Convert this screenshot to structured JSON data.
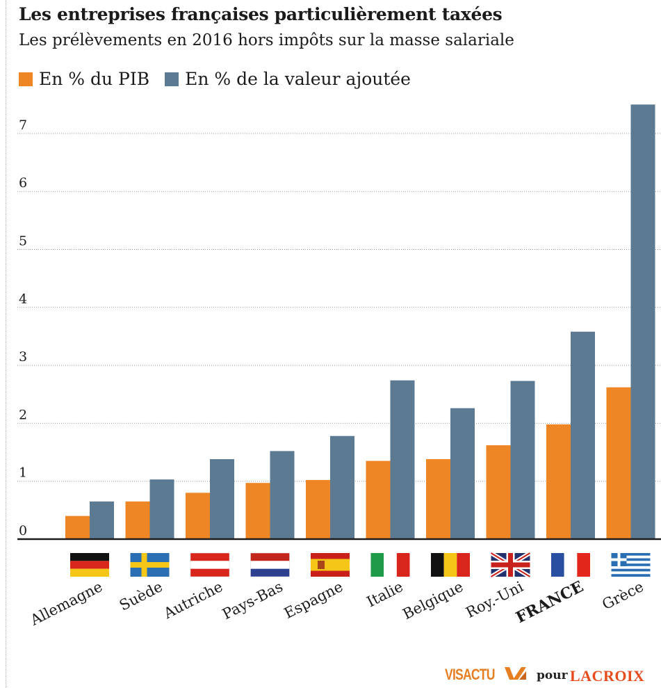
{
  "header": {
    "title": "Les entreprises françaises particulièrement taxées",
    "subtitle": "Les prélèvements en 2016 hors impôts sur la masse salariale"
  },
  "legend": [
    {
      "label": "En % du PIB",
      "color": "#ef8626"
    },
    {
      "label": "En % de la valeur ajoutée",
      "color": "#5d7a93"
    }
  ],
  "chart_data": {
    "type": "bar",
    "categories": [
      "Allemagne",
      "Suède",
      "Autriche",
      "Pays-Bas",
      "Espagne",
      "Italie",
      "Belgique",
      "Roy.-Uni",
      "FRANCE",
      "Grèce"
    ],
    "series": [
      {
        "name": "En % du PIB",
        "color": "#ef8626",
        "values": [
          0.4,
          0.65,
          0.8,
          0.97,
          1.02,
          1.35,
          1.38,
          1.62,
          1.98,
          2.62
        ]
      },
      {
        "name": "En % de la valeur ajoutée",
        "color": "#5d7a93",
        "values": [
          0.65,
          1.03,
          1.38,
          1.52,
          1.78,
          2.74,
          2.26,
          2.73,
          3.58,
          7.5
        ]
      }
    ],
    "yticks": [
      0,
      1,
      2,
      3,
      4,
      5,
      6,
      7
    ],
    "ylim": [
      0,
      7.5
    ],
    "grid": true,
    "highlight_category": "FRANCE",
    "flags": [
      "germany-flag",
      "sweden-flag",
      "austria-flag",
      "netherlands-flag",
      "spain-flag",
      "italy-flag",
      "belgium-flag",
      "uk-flag",
      "france-flag",
      "greece-flag"
    ]
  },
  "credit": {
    "brand": "VISACTU",
    "connector": "pour",
    "publisher": "LACROIX",
    "brand_color": "#e67e22",
    "publisher_color": "#e74c1f"
  }
}
